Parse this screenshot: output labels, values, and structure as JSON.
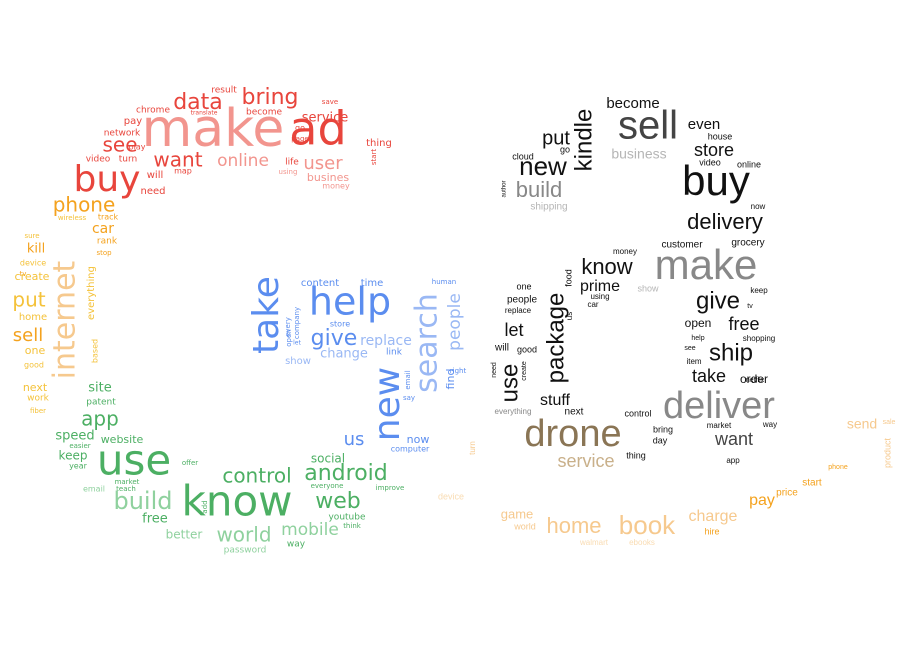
{
  "colors": {
    "red": "#e8453c",
    "salmon": "#f2958e",
    "orange": "#f4a21e",
    "yellow": "#f4c23a",
    "green": "#4caf63",
    "lightgreen": "#8fd19e",
    "blue": "#5b8def",
    "lightblue": "#9ab8f4",
    "black": "#111111",
    "darkgray": "#444444",
    "gray": "#888888",
    "lightgray": "#b5b5b5",
    "brown": "#8a7555",
    "tan": "#c9b08a",
    "peach": "#f6c98e",
    "lightpeach": "#f9dcb3"
  },
  "words": [
    {
      "text": "make",
      "color": "salmon"
    },
    {
      "text": "ad",
      "color": "red"
    },
    {
      "text": "data",
      "color": "red"
    },
    {
      "text": "bring",
      "color": "red"
    },
    {
      "text": "result",
      "color": "red"
    },
    {
      "text": "translate",
      "color": "red"
    },
    {
      "text": "become",
      "color": "red"
    },
    {
      "text": "chrome",
      "color": "red"
    },
    {
      "text": "pay",
      "color": "red"
    },
    {
      "text": "network",
      "color": "red"
    },
    {
      "text": "see",
      "color": "red"
    },
    {
      "text": "play",
      "color": "red"
    },
    {
      "text": "video",
      "color": "red"
    },
    {
      "text": "turn",
      "color": "red"
    },
    {
      "text": "want",
      "color": "red"
    },
    {
      "text": "online",
      "color": "salmon"
    },
    {
      "text": "user",
      "color": "salmon"
    },
    {
      "text": "service",
      "color": "red"
    },
    {
      "text": "save",
      "color": "red"
    },
    {
      "text": "go",
      "color": "red"
    },
    {
      "text": "page",
      "color": "red"
    },
    {
      "text": "life",
      "color": "red"
    },
    {
      "text": "using",
      "color": "salmon"
    },
    {
      "text": "busines",
      "color": "salmon"
    },
    {
      "text": "money",
      "color": "salmon"
    },
    {
      "text": "thing",
      "color": "red"
    },
    {
      "text": "start",
      "color": "red"
    },
    {
      "text": "buy",
      "color": "red"
    },
    {
      "text": "will",
      "color": "red"
    },
    {
      "text": "map",
      "color": "red"
    },
    {
      "text": "need",
      "color": "red"
    },
    {
      "text": "phone",
      "color": "orange"
    },
    {
      "text": "wireless",
      "color": "yellow"
    },
    {
      "text": "track",
      "color": "orange"
    },
    {
      "text": "car",
      "color": "orange"
    },
    {
      "text": "rank",
      "color": "orange"
    },
    {
      "text": "stop",
      "color": "orange"
    },
    {
      "text": "sure",
      "color": "yellow"
    },
    {
      "text": "kill",
      "color": "orange"
    },
    {
      "text": "device",
      "color": "yellow"
    },
    {
      "text": "tv",
      "color": "orange"
    },
    {
      "text": "create",
      "color": "yellow"
    },
    {
      "text": "internet",
      "color": "peach"
    },
    {
      "text": "everything",
      "color": "yellow"
    },
    {
      "text": "put",
      "color": "yellow"
    },
    {
      "text": "home",
      "color": "yellow"
    },
    {
      "text": "sell",
      "color": "orange"
    },
    {
      "text": "one",
      "color": "yellow"
    },
    {
      "text": "good",
      "color": "yellow"
    },
    {
      "text": "based",
      "color": "yellow"
    },
    {
      "text": "next",
      "color": "yellow"
    },
    {
      "text": "work",
      "color": "yellow"
    },
    {
      "text": "fiber",
      "color": "yellow"
    },
    {
      "text": "site",
      "color": "green"
    },
    {
      "text": "patent",
      "color": "green"
    },
    {
      "text": "app",
      "color": "green"
    },
    {
      "text": "speed",
      "color": "green"
    },
    {
      "text": "website",
      "color": "green"
    },
    {
      "text": "easier",
      "color": "green"
    },
    {
      "text": "keep",
      "color": "green"
    },
    {
      "text": "year",
      "color": "green"
    },
    {
      "text": "use",
      "color": "green"
    },
    {
      "text": "offer",
      "color": "green"
    },
    {
      "text": "email",
      "color": "lightgreen"
    },
    {
      "text": "teach",
      "color": "green"
    },
    {
      "text": "market",
      "color": "green"
    },
    {
      "text": "build",
      "color": "lightgreen"
    },
    {
      "text": "free",
      "color": "green"
    },
    {
      "text": "add",
      "color": "green"
    },
    {
      "text": "know",
      "color": "green"
    },
    {
      "text": "control",
      "color": "green"
    },
    {
      "text": "android",
      "color": "green"
    },
    {
      "text": "social",
      "color": "green"
    },
    {
      "text": "everyone",
      "color": "green"
    },
    {
      "text": "improve",
      "color": "green"
    },
    {
      "text": "web",
      "color": "green"
    },
    {
      "text": "youtube",
      "color": "green"
    },
    {
      "text": "think",
      "color": "green"
    },
    {
      "text": "better",
      "color": "lightgreen"
    },
    {
      "text": "world",
      "color": "lightgreen"
    },
    {
      "text": "mobile",
      "color": "lightgreen"
    },
    {
      "text": "way",
      "color": "green"
    },
    {
      "text": "password",
      "color": "lightgreen"
    },
    {
      "text": "take",
      "color": "blue"
    },
    {
      "text": "help",
      "color": "blue"
    },
    {
      "text": "content",
      "color": "blue"
    },
    {
      "text": "time",
      "color": "blue"
    },
    {
      "text": "human",
      "color": "blue"
    },
    {
      "text": "every",
      "color": "blue"
    },
    {
      "text": "company",
      "color": "blue"
    },
    {
      "text": "open",
      "color": "blue"
    },
    {
      "text": "let",
      "color": "blue"
    },
    {
      "text": "store",
      "color": "blue"
    },
    {
      "text": "give",
      "color": "blue"
    },
    {
      "text": "change",
      "color": "lightblue"
    },
    {
      "text": "replace",
      "color": "lightblue"
    },
    {
      "text": "link",
      "color": "blue"
    },
    {
      "text": "show",
      "color": "lightblue"
    },
    {
      "text": "search",
      "color": "lightblue"
    },
    {
      "text": "people",
      "color": "lightblue"
    },
    {
      "text": "new",
      "color": "blue"
    },
    {
      "text": "email",
      "color": "blue"
    },
    {
      "text": "say",
      "color": "blue"
    },
    {
      "text": "find",
      "color": "blue"
    },
    {
      "text": "right",
      "color": "blue"
    },
    {
      "text": "us",
      "color": "blue"
    },
    {
      "text": "now",
      "color": "blue"
    },
    {
      "text": "computer",
      "color": "blue"
    },
    {
      "text": "become",
      "color": "black"
    },
    {
      "text": "sell",
      "color": "darkgray"
    },
    {
      "text": "put",
      "color": "black"
    },
    {
      "text": "go",
      "color": "black"
    },
    {
      "text": "kindle",
      "color": "black"
    },
    {
      "text": "even",
      "color": "black"
    },
    {
      "text": "house",
      "color": "black"
    },
    {
      "text": "store",
      "color": "black"
    },
    {
      "text": "video",
      "color": "black"
    },
    {
      "text": "online",
      "color": "black"
    },
    {
      "text": "cloud",
      "color": "black"
    },
    {
      "text": "new",
      "color": "black"
    },
    {
      "text": "business",
      "color": "lightgray"
    },
    {
      "text": "buy",
      "color": "black"
    },
    {
      "text": "author",
      "color": "black"
    },
    {
      "text": "build",
      "color": "gray"
    },
    {
      "text": "shipping",
      "color": "lightgray"
    },
    {
      "text": "now",
      "color": "black"
    },
    {
      "text": "delivery",
      "color": "black"
    },
    {
      "text": "customer",
      "color": "black"
    },
    {
      "text": "grocery",
      "color": "black"
    },
    {
      "text": "money",
      "color": "black"
    },
    {
      "text": "know",
      "color": "black"
    },
    {
      "text": "make",
      "color": "gray"
    },
    {
      "text": "food",
      "color": "black"
    },
    {
      "text": "prime",
      "color": "black"
    },
    {
      "text": "show",
      "color": "lightgray"
    },
    {
      "text": "keep",
      "color": "black"
    },
    {
      "text": "one",
      "color": "black"
    },
    {
      "text": "using",
      "color": "black"
    },
    {
      "text": "people",
      "color": "black"
    },
    {
      "text": "car",
      "color": "black"
    },
    {
      "text": "give",
      "color": "black"
    },
    {
      "text": "tv",
      "color": "black"
    },
    {
      "text": "replace",
      "color": "black"
    },
    {
      "text": "us",
      "color": "black"
    },
    {
      "text": "package",
      "color": "black"
    },
    {
      "text": "open",
      "color": "black"
    },
    {
      "text": "free",
      "color": "black"
    },
    {
      "text": "help",
      "color": "black"
    },
    {
      "text": "shopping",
      "color": "black"
    },
    {
      "text": "let",
      "color": "black"
    },
    {
      "text": "will",
      "color": "black"
    },
    {
      "text": "good",
      "color": "black"
    },
    {
      "text": "see",
      "color": "black"
    },
    {
      "text": "ship",
      "color": "black"
    },
    {
      "text": "need",
      "color": "black"
    },
    {
      "text": "create",
      "color": "black"
    },
    {
      "text": "item",
      "color": "black"
    },
    {
      "text": "take",
      "color": "black"
    },
    {
      "text": "netflix",
      "color": "black"
    },
    {
      "text": "use",
      "color": "black"
    },
    {
      "text": "order",
      "color": "black"
    },
    {
      "text": "stuff",
      "color": "black"
    },
    {
      "text": "everything",
      "color": "gray"
    },
    {
      "text": "next",
      "color": "black"
    },
    {
      "text": "control",
      "color": "black"
    },
    {
      "text": "deliver",
      "color": "gray"
    },
    {
      "text": "market",
      "color": "black"
    },
    {
      "text": "way",
      "color": "black"
    },
    {
      "text": "drone",
      "color": "brown"
    },
    {
      "text": "bring",
      "color": "black"
    },
    {
      "text": "day",
      "color": "black"
    },
    {
      "text": "want",
      "color": "darkgray"
    },
    {
      "text": "service",
      "color": "tan"
    },
    {
      "text": "thing",
      "color": "black"
    },
    {
      "text": "app",
      "color": "black"
    },
    {
      "text": "send",
      "color": "peach"
    },
    {
      "text": "sale",
      "color": "peach"
    },
    {
      "text": "product",
      "color": "peach"
    },
    {
      "text": "turn",
      "color": "peach"
    },
    {
      "text": "device",
      "color": "lightpeach"
    },
    {
      "text": "phone",
      "color": "orange"
    },
    {
      "text": "start",
      "color": "orange"
    },
    {
      "text": "price",
      "color": "orange"
    },
    {
      "text": "pay",
      "color": "orange"
    },
    {
      "text": "charge",
      "color": "peach"
    },
    {
      "text": "hire",
      "color": "orange"
    },
    {
      "text": "game",
      "color": "peach"
    },
    {
      "text": "world",
      "color": "peach"
    },
    {
      "text": "home",
      "color": "peach"
    },
    {
      "text": "book",
      "color": "peach"
    },
    {
      "text": "walmart",
      "color": "lightpeach"
    },
    {
      "text": "ebooks",
      "color": "lightpeach"
    }
  ]
}
